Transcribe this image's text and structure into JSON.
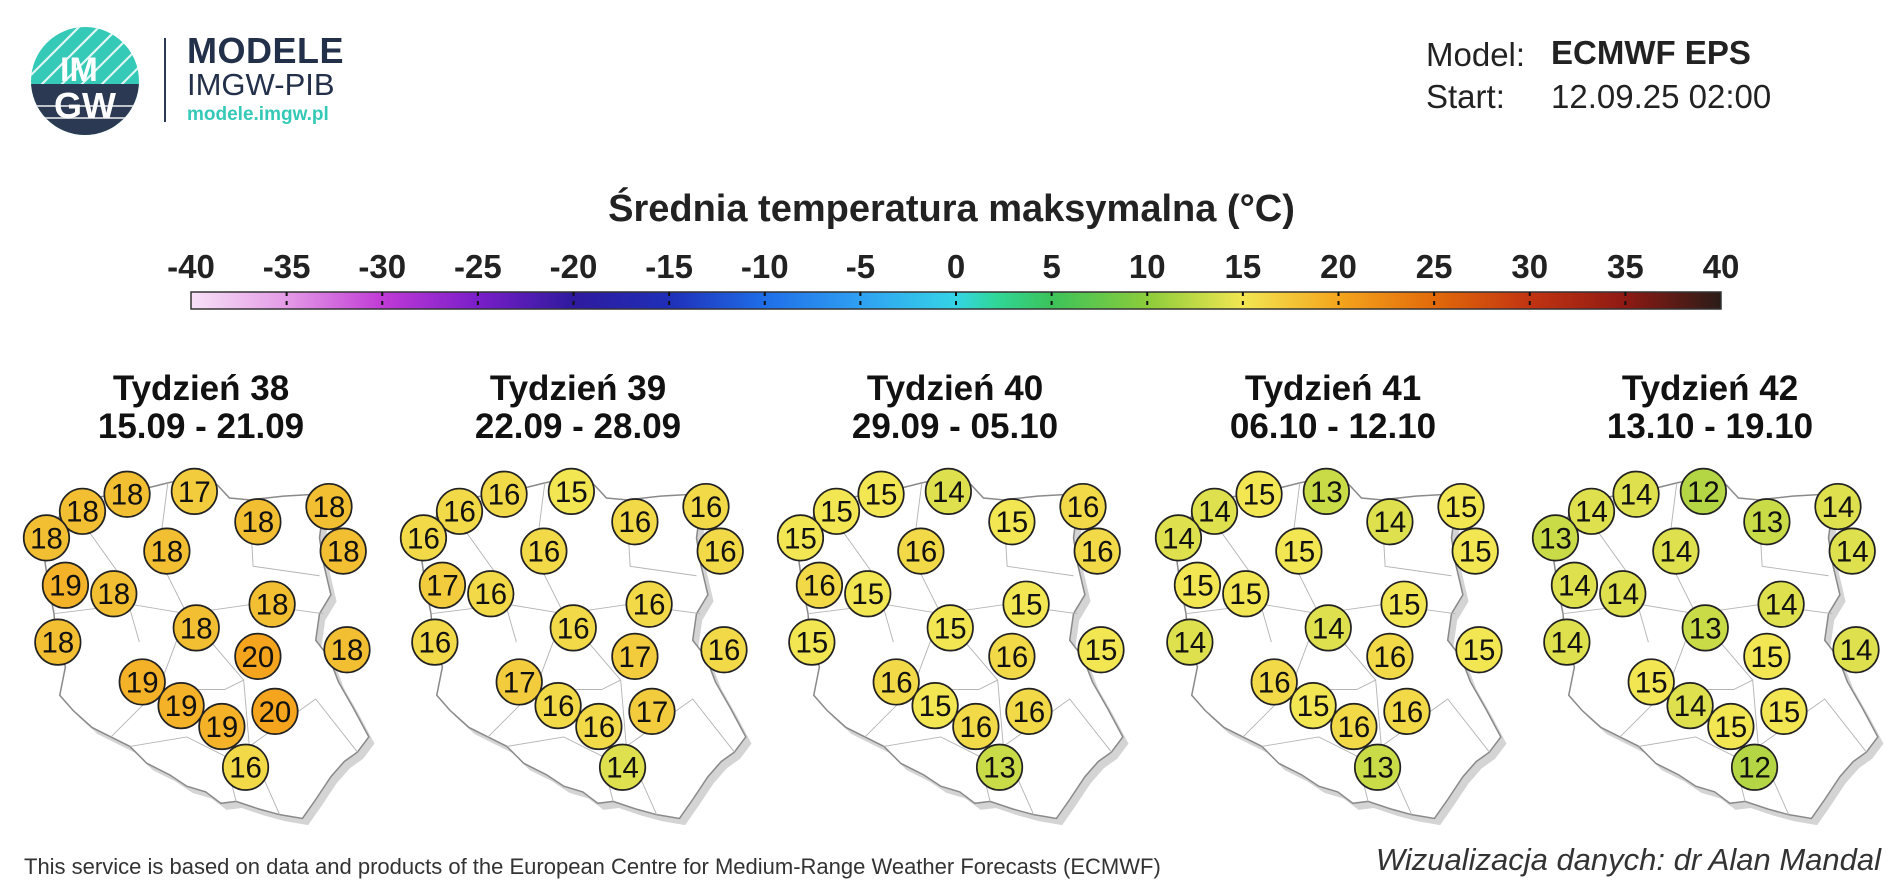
{
  "header": {
    "logo_text_top": "IM",
    "logo_text_bottom": "GW",
    "brand_title": "MODELE",
    "brand_subtitle": "IMGW-PIB",
    "brand_url": "modele.imgw.pl",
    "model_label": "Model:",
    "model_value": "ECMWF EPS",
    "start_label": "Start:",
    "start_value": "12.09.25 02:00"
  },
  "colorbar": {
    "title": "Średnia temperatura maksymalna (°C)",
    "ticks": [
      "-40",
      "-35",
      "-30",
      "-25",
      "-20",
      "-15",
      "-10",
      "-5",
      "0",
      "5",
      "10",
      "15",
      "20",
      "25",
      "30",
      "35",
      "40"
    ],
    "range": [
      -40,
      40
    ],
    "stops": [
      {
        "value": -40,
        "color": "#f7e1f7"
      },
      {
        "value": -35,
        "color": "#e49be6"
      },
      {
        "value": -30,
        "color": "#c03ad6"
      },
      {
        "value": -25,
        "color": "#7a1ec9"
      },
      {
        "value": -20,
        "color": "#2e1a9e"
      },
      {
        "value": -15,
        "color": "#1f2fb8"
      },
      {
        "value": -10,
        "color": "#1f6ee8"
      },
      {
        "value": -5,
        "color": "#2fa0f2"
      },
      {
        "value": 0,
        "color": "#35d4e6"
      },
      {
        "value": 2,
        "color": "#2fd79a"
      },
      {
        "value": 5,
        "color": "#3cc35a"
      },
      {
        "value": 10,
        "color": "#8ccc3a"
      },
      {
        "value": 15,
        "color": "#f2e652"
      },
      {
        "value": 20,
        "color": "#f4a51d"
      },
      {
        "value": 25,
        "color": "#e26a0a"
      },
      {
        "value": 30,
        "color": "#c23412"
      },
      {
        "value": 35,
        "color": "#8e1a14"
      },
      {
        "value": 40,
        "color": "#2b1c18"
      }
    ]
  },
  "weeks": [
    {
      "title": "Tydzień 38",
      "dates": "15.09 - 21.09",
      "values": [
        18,
        18,
        17,
        18,
        18,
        18,
        18,
        18,
        19,
        18,
        18,
        18,
        18,
        20,
        18,
        19,
        19,
        20,
        19,
        16
      ]
    },
    {
      "title": "Tydzień 39",
      "dates": "22.09 - 28.09",
      "values": [
        16,
        16,
        15,
        16,
        16,
        16,
        16,
        16,
        17,
        16,
        16,
        16,
        16,
        17,
        16,
        17,
        16,
        17,
        16,
        14
      ]
    },
    {
      "title": "Tydzień 40",
      "dates": "29.09 - 05.10",
      "values": [
        15,
        15,
        14,
        16,
        15,
        15,
        16,
        16,
        16,
        15,
        15,
        15,
        15,
        16,
        15,
        16,
        15,
        16,
        16,
        13
      ]
    },
    {
      "title": "Tydzień 41",
      "dates": "06.10 - 12.10",
      "values": [
        14,
        15,
        13,
        15,
        14,
        14,
        15,
        15,
        15,
        15,
        15,
        14,
        14,
        16,
        15,
        16,
        15,
        16,
        16,
        13
      ]
    },
    {
      "title": "Tydzień 42",
      "dates": "13.10 - 19.10",
      "values": [
        14,
        14,
        12,
        14,
        13,
        13,
        14,
        14,
        14,
        14,
        14,
        13,
        14,
        15,
        14,
        15,
        14,
        15,
        15,
        12
      ]
    }
  ],
  "footer": {
    "left": "This service is based on data and products of the European Centre for Medium-Range Weather Forecasts (ECMWF)",
    "right": "Wizualizacja danych: dr Alan Mandal"
  }
}
